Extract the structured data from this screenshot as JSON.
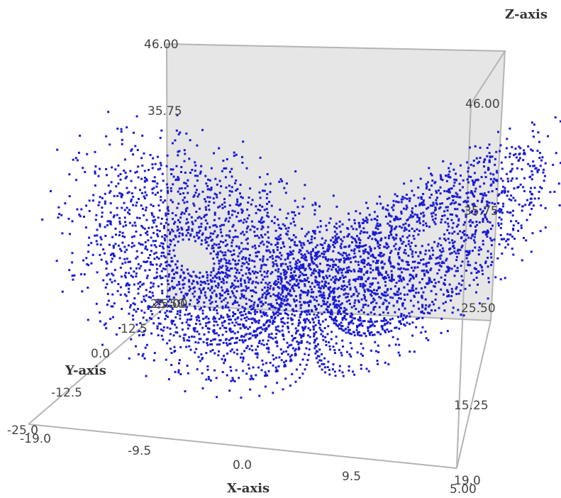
{
  "chart_data": {
    "type": "scatter3d",
    "title": "",
    "attractor": "lorenz",
    "xlabel": "X-axis",
    "ylabel": "Y-axis",
    "zlabel": "Z-axis",
    "x_ticks": [
      "-19.0",
      "-9.5",
      "0.0",
      "9.5",
      "19.0"
    ],
    "y_ticks": [
      "-25.0",
      "-12.5",
      "0.0",
      "12.5",
      "25.00"
    ],
    "z_ticks_back": [
      "46.00",
      "35.75",
      "25.50",
      "15.25",
      "5.00"
    ],
    "z_ticks_right": [
      "46.00",
      "35.75",
      "25.50",
      "15.25",
      "5.00"
    ],
    "xlim": [
      -19,
      19
    ],
    "ylim": [
      -25,
      25
    ],
    "zlim": [
      5,
      46
    ],
    "grid": false,
    "colors": {
      "points": "#1a1ad6",
      "back_wall": "#e6e6e6",
      "frame": "#b4b4b4",
      "tick_text": "#444444"
    }
  }
}
